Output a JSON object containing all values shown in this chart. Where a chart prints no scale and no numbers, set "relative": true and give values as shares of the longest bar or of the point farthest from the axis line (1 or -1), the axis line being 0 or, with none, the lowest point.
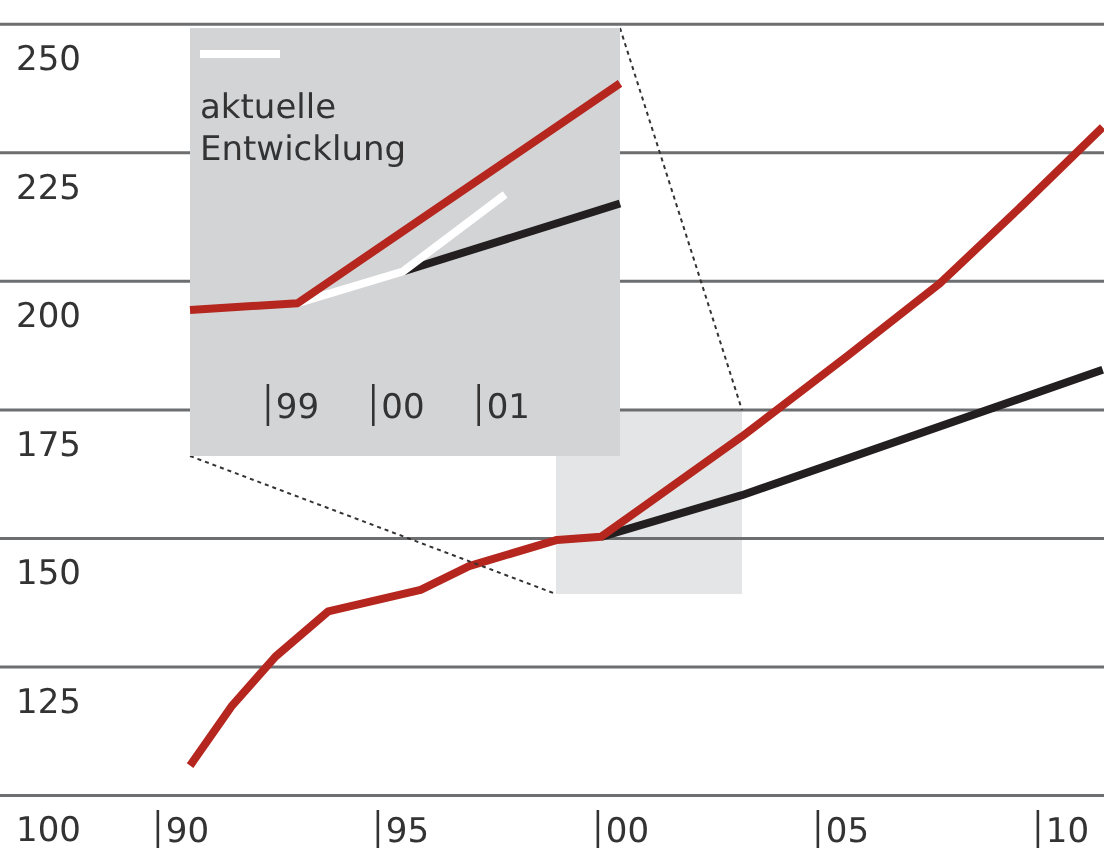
{
  "chart_data": [
    {
      "type": "line",
      "xlim": [
        1985.74,
        2010.83
      ],
      "ylim": [
        100,
        254
      ],
      "xticks": [
        {
          "value": 1990,
          "label": "90"
        },
        {
          "value": 1995,
          "label": "95"
        },
        {
          "value": 2000,
          "label": "00"
        },
        {
          "value": 2005,
          "label": "05"
        },
        {
          "value": 2010,
          "label": "10"
        }
      ],
      "yticks": [
        100,
        125,
        150,
        175,
        200,
        225,
        250
      ],
      "grid": "y",
      "series": [
        {
          "color": "#231f20",
          "x": [
            1999.4,
            2002.6,
            2010.8
          ],
          "values": [
            150.3,
            158.4,
            182.8
          ]
        },
        {
          "color": "#b5261e",
          "x": [
            1990.06,
            1991.0,
            1992.0,
            1993.2,
            1995.3,
            1996.4,
            1998.4,
            1999.4,
            2002.6,
            2005,
            2007.1,
            2009,
            2010.8
          ],
          "values": [
            105.8,
            117.3,
            127,
            135.8,
            140,
            144.6,
            149.7,
            150.3,
            169.8,
            185.5,
            199.6,
            215,
            230
          ]
        }
      ]
    },
    {
      "type": "line",
      "relative": true,
      "xlim": [
        1997.98,
        2002.06
      ],
      "xticks": [
        {
          "value": 1999,
          "label": "99"
        },
        {
          "value": 2000,
          "label": "00"
        },
        {
          "value": 2001,
          "label": "01"
        }
      ],
      "tick_labels": "x",
      "legend": "top left",
      "series": [
        {
          "color": "#231f20",
          "x": [
            2000,
            2002.06
          ],
          "values": [
            0.17,
            0.47
          ]
        },
        {
          "name": "aktuelle Entwicklung",
          "color": "#ffffff",
          "x": [
            1999,
            2000,
            2000.97
          ],
          "values": [
            0.03,
            0.17,
            0.51
          ]
        },
        {
          "color": "#b5261e",
          "x": [
            1997.98,
            1999,
            2002.06
          ],
          "values": [
            0,
            0.03,
            1
          ]
        }
      ]
    }
  ]
}
